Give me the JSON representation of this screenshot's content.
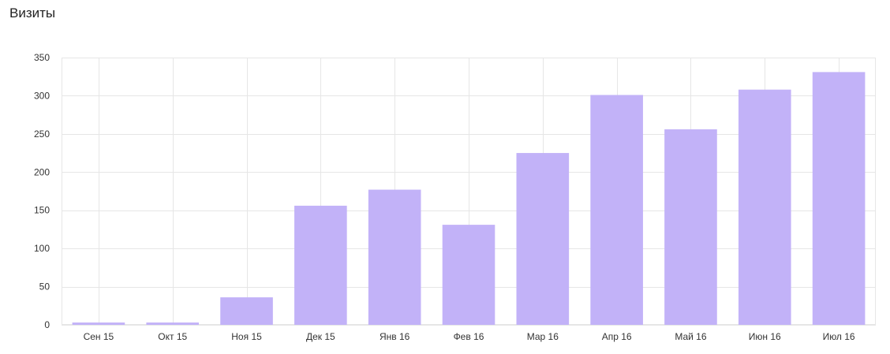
{
  "chart_data": {
    "type": "bar",
    "title": "Визиты",
    "categories": [
      "Сен 15",
      "Окт 15",
      "Ноя 15",
      "Дек 15",
      "Янв 16",
      "Фев 16",
      "Мар 16",
      "Апр 16",
      "Май 16",
      "Июн 16",
      "Июл 16"
    ],
    "values": [
      3,
      3,
      36,
      156,
      177,
      131,
      225,
      301,
      256,
      308,
      331
    ],
    "ylim": [
      0,
      350
    ],
    "yticks": [
      0,
      50,
      100,
      150,
      200,
      250,
      300,
      350
    ],
    "ytick_labels": [
      "0",
      "50",
      "100",
      "150",
      "200",
      "250",
      "300",
      "350"
    ],
    "grid": true,
    "bar_color": "#c2b2f8",
    "grid_color": "#e6e6e6"
  }
}
